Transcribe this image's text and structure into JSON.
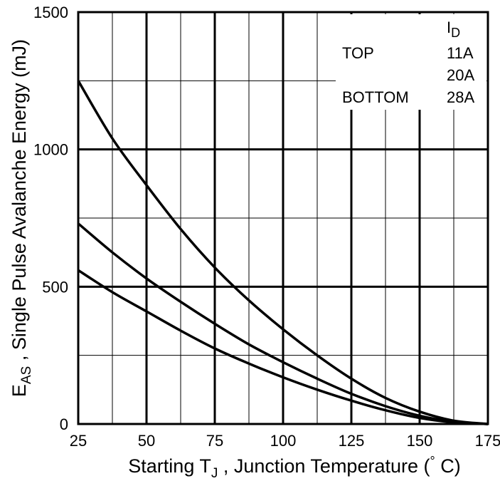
{
  "chart_data": {
    "type": "line",
    "title": "",
    "xlabel": {
      "prefix": "Starting T",
      "sub": "J",
      "suffix": " , Junction Temperature (",
      "deg": "°",
      "unit": " C)"
    },
    "ylabel": {
      "prefix": "E",
      "sub": "AS",
      "suffix": " , Single Pulse Avalanche Energy  (mJ)"
    },
    "xlim": [
      25,
      175
    ],
    "ylim": [
      0,
      1500
    ],
    "xticks": [
      25,
      50,
      75,
      100,
      125,
      150,
      175
    ],
    "yticks": [
      0,
      500,
      1000,
      1500
    ],
    "xgrid_minor": [
      37.5,
      62.5,
      87.5,
      112.5,
      137.5,
      162.5
    ],
    "ygrid_minor": [
      250,
      750,
      1250
    ],
    "grid": true,
    "legend": {
      "header_prefix": "I",
      "header_sub": "D",
      "placement": "top-right",
      "rows": [
        {
          "label": "TOP",
          "value": "11A"
        },
        {
          "label": "",
          "value": "20A"
        },
        {
          "label": "BOTTOM",
          "value": "28A"
        }
      ]
    },
    "x": [
      25,
      37.5,
      50,
      62.5,
      75,
      87.5,
      100,
      112.5,
      125,
      137.5,
      150,
      162.5,
      175
    ],
    "series": [
      {
        "name": "11A",
        "values": [
          1250,
          1040,
          870,
          710,
          570,
          450,
          345,
          250,
          165,
          95,
          45,
          12,
          0
        ]
      },
      {
        "name": "20A",
        "values": [
          730,
          625,
          530,
          445,
          365,
          290,
          225,
          165,
          110,
          65,
          30,
          8,
          0
        ]
      },
      {
        "name": "28A",
        "values": [
          560,
          480,
          410,
          340,
          275,
          220,
          170,
          125,
          85,
          50,
          22,
          6,
          0
        ]
      }
    ]
  }
}
